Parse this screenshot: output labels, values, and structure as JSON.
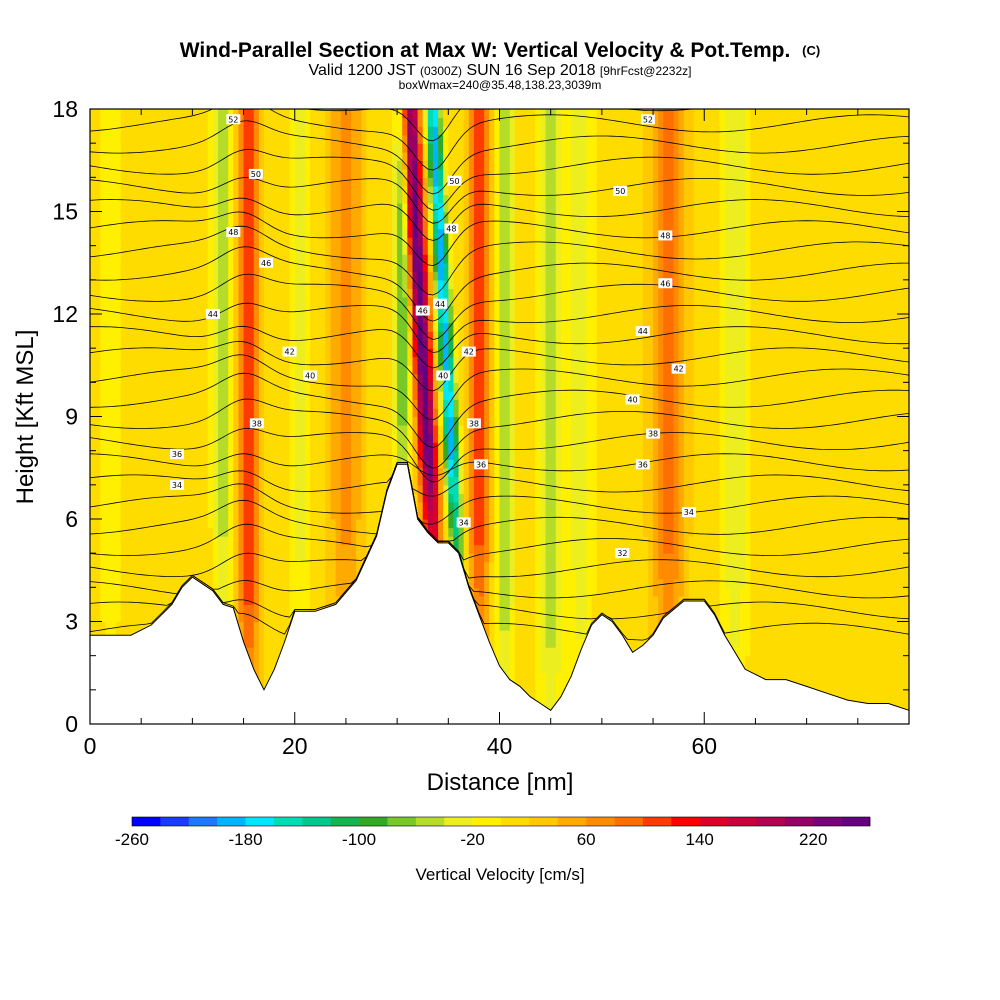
{
  "chart_data": {
    "type": "heatmap",
    "title": "Wind-Parallel Section at Max W: Vertical Velocity & Pot.Temp.",
    "title_mark": "(C)",
    "subtitle": {
      "valid": "Valid 1200 JST",
      "utc": "(0300Z)",
      "date": "SUN 16 Sep 2018",
      "fcst": "[9hrFcst@2232z]"
    },
    "box_info": "boxWmax=240@35.48,138.23,3039m",
    "xlabel": "Distance [nm]",
    "ylabel": "Height [Kft MSL]",
    "xlim": [
      0,
      80
    ],
    "ylim": [
      0,
      18
    ],
    "x_ticks": [
      "0",
      "20",
      "40",
      "60"
    ],
    "y_ticks": [
      "0",
      "3",
      "6",
      "9",
      "12",
      "15",
      "18"
    ],
    "colorbar": {
      "label": "Vertical Velocity [cm/s]",
      "tick_labels": [
        "-260",
        "-180",
        "-100",
        "-20",
        "60",
        "140",
        "220"
      ],
      "min": -260,
      "max": 260,
      "step": 20,
      "colors": [
        "#0000ff",
        "#1a3cff",
        "#1e78ff",
        "#00b4ff",
        "#00e6ff",
        "#00dcb4",
        "#00c88c",
        "#14b450",
        "#32aa28",
        "#78c828",
        "#b4dc28",
        "#ecee20",
        "#fff000",
        "#ffdc00",
        "#ffc800",
        "#ffaa00",
        "#ff8c00",
        "#ff6e00",
        "#ff3c00",
        "#ff0000",
        "#dc0028",
        "#c8003c",
        "#b40050",
        "#960064",
        "#780078",
        "#64007f"
      ]
    },
    "terrain": [
      [
        0,
        2.6
      ],
      [
        2,
        2.6
      ],
      [
        4,
        2.6
      ],
      [
        6,
        2.9
      ],
      [
        8,
        3.5
      ],
      [
        9,
        4
      ],
      [
        10,
        4.3
      ],
      [
        11,
        4.1
      ],
      [
        12,
        3.9
      ],
      [
        13,
        3.5
      ],
      [
        14,
        3.4
      ],
      [
        15,
        2.4
      ],
      [
        16,
        1.6
      ],
      [
        17,
        1.0
      ],
      [
        18,
        1.6
      ],
      [
        19,
        2.4
      ],
      [
        20,
        3.3
      ],
      [
        22,
        3.3
      ],
      [
        24,
        3.5
      ],
      [
        26,
        4.2
      ],
      [
        28,
        5.5
      ],
      [
        29,
        6.8
      ],
      [
        30,
        7.6
      ],
      [
        31,
        7.6
      ],
      [
        32,
        6.0
      ],
      [
        33,
        5.6
      ],
      [
        34,
        5.3
      ],
      [
        35,
        5.3
      ],
      [
        36,
        5.0
      ],
      [
        37,
        4.0
      ],
      [
        38,
        3.2
      ],
      [
        39,
        2.4
      ],
      [
        40,
        1.7
      ],
      [
        41,
        1.3
      ],
      [
        42,
        1.1
      ],
      [
        43,
        0.8
      ],
      [
        44,
        0.6
      ],
      [
        45,
        0.4
      ],
      [
        46,
        0.8
      ],
      [
        47,
        1.4
      ],
      [
        48,
        2.2
      ],
      [
        49,
        2.9
      ],
      [
        50,
        3.2
      ],
      [
        51,
        3.0
      ],
      [
        52,
        2.6
      ],
      [
        53,
        2.1
      ],
      [
        54,
        2.3
      ],
      [
        55,
        2.6
      ],
      [
        56,
        3.1
      ],
      [
        58,
        3.6
      ],
      [
        60,
        3.6
      ],
      [
        61,
        3.2
      ],
      [
        62,
        2.6
      ],
      [
        63,
        2.1
      ],
      [
        64,
        1.6
      ],
      [
        66,
        1.3
      ],
      [
        68,
        1.3
      ],
      [
        70,
        1.1
      ],
      [
        72,
        0.9
      ],
      [
        74,
        0.7
      ],
      [
        76,
        0.6
      ],
      [
        78,
        0.6
      ],
      [
        80,
        0.4
      ]
    ],
    "updrafts": [
      {
        "x": 33,
        "peak": 240,
        "width": 0.9
      },
      {
        "x": 15.5,
        "peak": 110,
        "width": 1.0
      },
      {
        "x": 38,
        "peak": 100,
        "width": 1.0
      },
      {
        "x": 56.5,
        "peak": 80,
        "width": 1.5
      },
      {
        "x": 25,
        "peak": 60,
        "width": 1.5
      }
    ],
    "downdrafts": [
      {
        "x": 35.3,
        "peak": -200,
        "width": 0.7
      },
      {
        "x": 30.5,
        "peak": -100,
        "width": 0.8
      },
      {
        "x": 13,
        "peak": -60,
        "width": 1.0
      },
      {
        "x": 40.5,
        "peak": -70,
        "width": 0.9
      },
      {
        "x": 48,
        "peak": -50,
        "width": 1.1
      },
      {
        "x": 45,
        "peak": -60,
        "width": 1.2
      },
      {
        "x": 63,
        "peak": -50,
        "width": 1.3
      },
      {
        "x": 20.5,
        "peak": -40,
        "width": 1.0
      },
      {
        "x": 2,
        "peak": -30,
        "width": 1.0
      }
    ],
    "isentrope_labels": [
      {
        "x": 14,
        "y": 17.7,
        "text": "52"
      },
      {
        "x": 54.5,
        "y": 17.7,
        "text": "52"
      },
      {
        "x": 16.2,
        "y": 16.1,
        "text": "50"
      },
      {
        "x": 51.8,
        "y": 15.6,
        "text": "50"
      },
      {
        "x": 35.6,
        "y": 15.9,
        "text": "50"
      },
      {
        "x": 14,
        "y": 14.4,
        "text": "48"
      },
      {
        "x": 56.2,
        "y": 14.3,
        "text": "48"
      },
      {
        "x": 35.3,
        "y": 14.5,
        "text": "48"
      },
      {
        "x": 17.2,
        "y": 13.5,
        "text": "46"
      },
      {
        "x": 56.2,
        "y": 12.9,
        "text": "46"
      },
      {
        "x": 12,
        "y": 12.0,
        "text": "44"
      },
      {
        "x": 34.2,
        "y": 12.3,
        "text": "44"
      },
      {
        "x": 54,
        "y": 11.5,
        "text": "44"
      },
      {
        "x": 32.5,
        "y": 12.1,
        "text": "46"
      },
      {
        "x": 19.5,
        "y": 10.9,
        "text": "42"
      },
      {
        "x": 37,
        "y": 10.9,
        "text": "42"
      },
      {
        "x": 57.5,
        "y": 10.4,
        "text": "42"
      },
      {
        "x": 21.5,
        "y": 10.2,
        "text": "40"
      },
      {
        "x": 34.5,
        "y": 10.2,
        "text": "40"
      },
      {
        "x": 53,
        "y": 9.5,
        "text": "40"
      },
      {
        "x": 16.3,
        "y": 8.8,
        "text": "38"
      },
      {
        "x": 37.5,
        "y": 8.8,
        "text": "38"
      },
      {
        "x": 55,
        "y": 8.5,
        "text": "38"
      },
      {
        "x": 8.5,
        "y": 7.9,
        "text": "36"
      },
      {
        "x": 38.2,
        "y": 7.6,
        "text": "36"
      },
      {
        "x": 54,
        "y": 7.6,
        "text": "36"
      },
      {
        "x": 8.5,
        "y": 7.0,
        "text": "34"
      },
      {
        "x": 36.5,
        "y": 5.9,
        "text": "34"
      },
      {
        "x": 58.5,
        "y": 6.2,
        "text": "34"
      },
      {
        "x": 52,
        "y": 5.0,
        "text": "32"
      }
    ]
  }
}
